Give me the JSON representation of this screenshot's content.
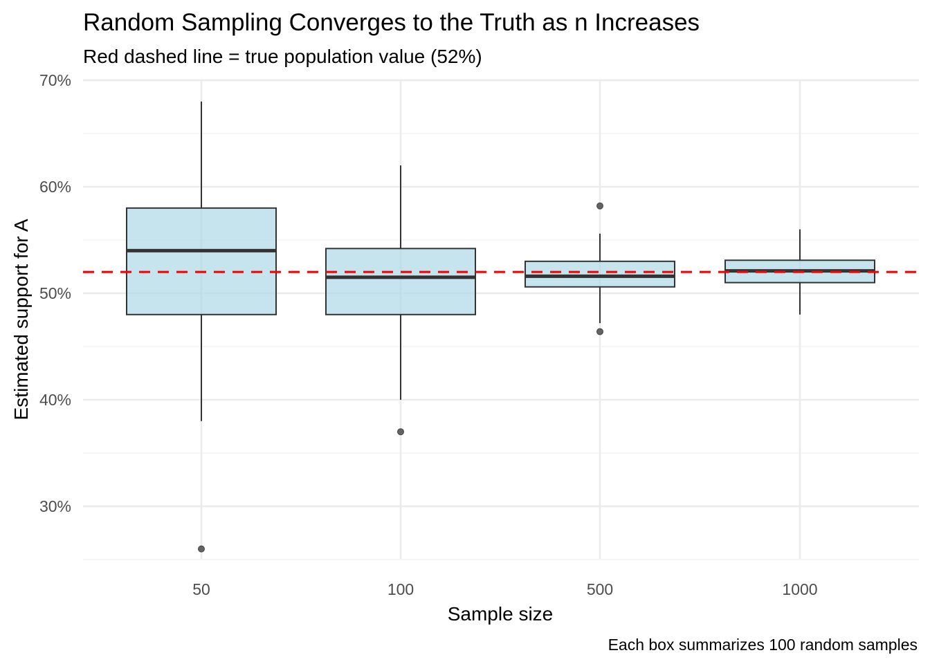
{
  "chart_data": {
    "type": "boxplot",
    "title": "Random Sampling Converges to the Truth as n Increases",
    "subtitle": "Red dashed line = true population value (52%)",
    "xlabel": "Sample size",
    "ylabel": "Estimated support for A",
    "caption": "Each box summarizes 100 random samples",
    "categories": [
      "50",
      "100",
      "500",
      "1000"
    ],
    "y_ticks": [
      30,
      40,
      50,
      60,
      70
    ],
    "y_tick_labels": [
      "30%",
      "40%",
      "50%",
      "60%",
      "70%"
    ],
    "ylim": [
      24.6,
      70
    ],
    "grid": true,
    "reference_line": {
      "value": 52,
      "color": "#ff0000",
      "style": "dashed"
    },
    "boxes": [
      {
        "category": "50",
        "whisker_low": 38,
        "q1": 48,
        "median": 54,
        "q3": 58,
        "whisker_high": 68,
        "outliers": [
          26
        ]
      },
      {
        "category": "100",
        "whisker_low": 40,
        "q1": 48,
        "median": 51.5,
        "q3": 54.2,
        "whisker_high": 62,
        "outliers": [
          37
        ]
      },
      {
        "category": "500",
        "whisker_low": 47.2,
        "q1": 50.6,
        "median": 51.6,
        "q3": 53.0,
        "whisker_high": 55.6,
        "outliers": [
          58.2,
          46.4
        ]
      },
      {
        "category": "1000",
        "whisker_low": 48,
        "q1": 51.0,
        "median": 52.1,
        "q3": 53.1,
        "whisker_high": 56,
        "outliers": []
      }
    ],
    "colors": {
      "box_fill": "#add8e6",
      "box_stroke": "#333333",
      "reference": "#ff0000",
      "outlier": "#636363",
      "grid": "#ebebeb"
    }
  }
}
